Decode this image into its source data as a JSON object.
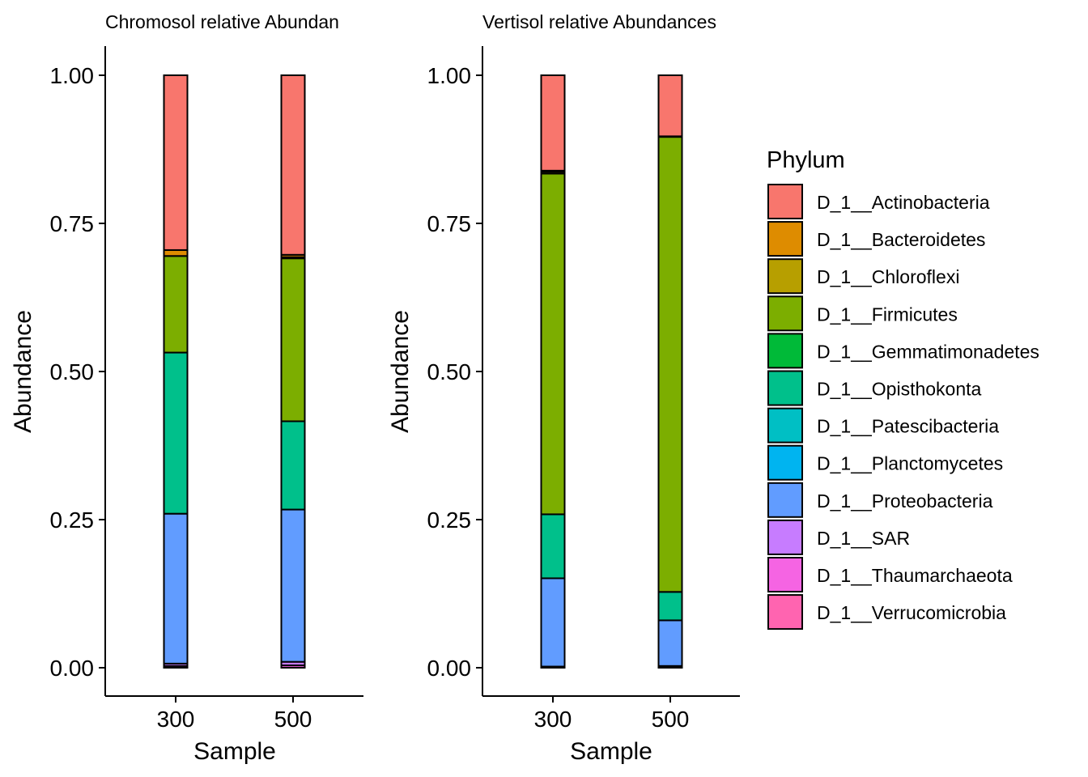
{
  "chart_data": [
    {
      "type": "bar",
      "stacked": true,
      "title": "Chromosol relative Abundan",
      "xlabel": "Sample",
      "ylabel": "Abundance",
      "ylim": [
        -0.05,
        1.05
      ],
      "yticks": [
        "0.00",
        "0.25",
        "0.50",
        "0.75",
        "1.00"
      ],
      "categories": [
        "300",
        "500"
      ],
      "series": [
        {
          "name": "D_1__Thaumarchaeota",
          "values": [
            0.003,
            0.004
          ]
        },
        {
          "name": "D_1__SAR",
          "values": [
            0.004,
            0.006
          ]
        },
        {
          "name": "D_1__Proteobacteria",
          "values": [
            0.253,
            0.257
          ]
        },
        {
          "name": "D_1__Opisthokonta",
          "values": [
            0.272,
            0.149
          ]
        },
        {
          "name": "D_1__Firmicutes",
          "values": [
            0.163,
            0.275
          ]
        },
        {
          "name": "D_1__Chloroflexi",
          "values": [
            0.0,
            0.002
          ]
        },
        {
          "name": "D_1__Bacteroidetes",
          "values": [
            0.01,
            0.004
          ]
        },
        {
          "name": "D_1__Actinobacteria",
          "values": [
            0.295,
            0.303
          ]
        }
      ]
    },
    {
      "type": "bar",
      "stacked": true,
      "title": "Vertisol relative Abundances",
      "xlabel": "Sample",
      "ylabel": "Abundance",
      "ylim": [
        -0.05,
        1.05
      ],
      "yticks": [
        "0.00",
        "0.25",
        "0.50",
        "0.75",
        "1.00"
      ],
      "categories": [
        "300",
        "500"
      ],
      "series": [
        {
          "name": "D_1__Thaumarchaeota",
          "values": [
            0.001,
            0.001
          ]
        },
        {
          "name": "D_1__SAR",
          "values": [
            0.001,
            0.002
          ]
        },
        {
          "name": "D_1__Proteobacteria",
          "values": [
            0.149,
            0.077
          ]
        },
        {
          "name": "D_1__Opisthokonta",
          "values": [
            0.108,
            0.048
          ]
        },
        {
          "name": "D_1__Firmicutes",
          "values": [
            0.575,
            0.768
          ]
        },
        {
          "name": "D_1__Chloroflexi",
          "values": [
            0.003,
            0.001
          ]
        },
        {
          "name": "D_1__Bacteroidetes",
          "values": [
            0.002,
            0.0
          ]
        },
        {
          "name": "D_1__Actinobacteria",
          "values": [
            0.161,
            0.103
          ]
        }
      ]
    }
  ],
  "legend": {
    "title": "Phylum",
    "position": "right",
    "items": [
      {
        "label": "D_1__Actinobacteria",
        "color": "#F8766D"
      },
      {
        "label": "D_1__Bacteroidetes",
        "color": "#DE8C00"
      },
      {
        "label": "D_1__Chloroflexi",
        "color": "#B79F00"
      },
      {
        "label": "D_1__Firmicutes",
        "color": "#7CAE00"
      },
      {
        "label": "D_1__Gemmatimonadetes",
        "color": "#00BA38"
      },
      {
        "label": "D_1__Opisthokonta",
        "color": "#00C08B"
      },
      {
        "label": "D_1__Patescibacteria",
        "color": "#00BFC4"
      },
      {
        "label": "D_1__Planctomycetes",
        "color": "#00B4F0"
      },
      {
        "label": "D_1__Proteobacteria",
        "color": "#619CFF"
      },
      {
        "label": "D_1__SAR",
        "color": "#C77CFF"
      },
      {
        "label": "D_1__Thaumarchaeota",
        "color": "#F564E3"
      },
      {
        "label": "D_1__Verrucomicrobia",
        "color": "#FF64B0"
      }
    ]
  },
  "colors": {
    "D_1__Actinobacteria": "#F8766D",
    "D_1__Bacteroidetes": "#DE8C00",
    "D_1__Chloroflexi": "#B79F00",
    "D_1__Firmicutes": "#7CAE00",
    "D_1__Gemmatimonadetes": "#00BA38",
    "D_1__Opisthokonta": "#00C08B",
    "D_1__Patescibacteria": "#00BFC4",
    "D_1__Planctomycetes": "#00B4F0",
    "D_1__Proteobacteria": "#619CFF",
    "D_1__SAR": "#C77CFF",
    "D_1__Thaumarchaeota": "#F564E3",
    "D_1__Verrucomicrobia": "#FF64B0"
  }
}
